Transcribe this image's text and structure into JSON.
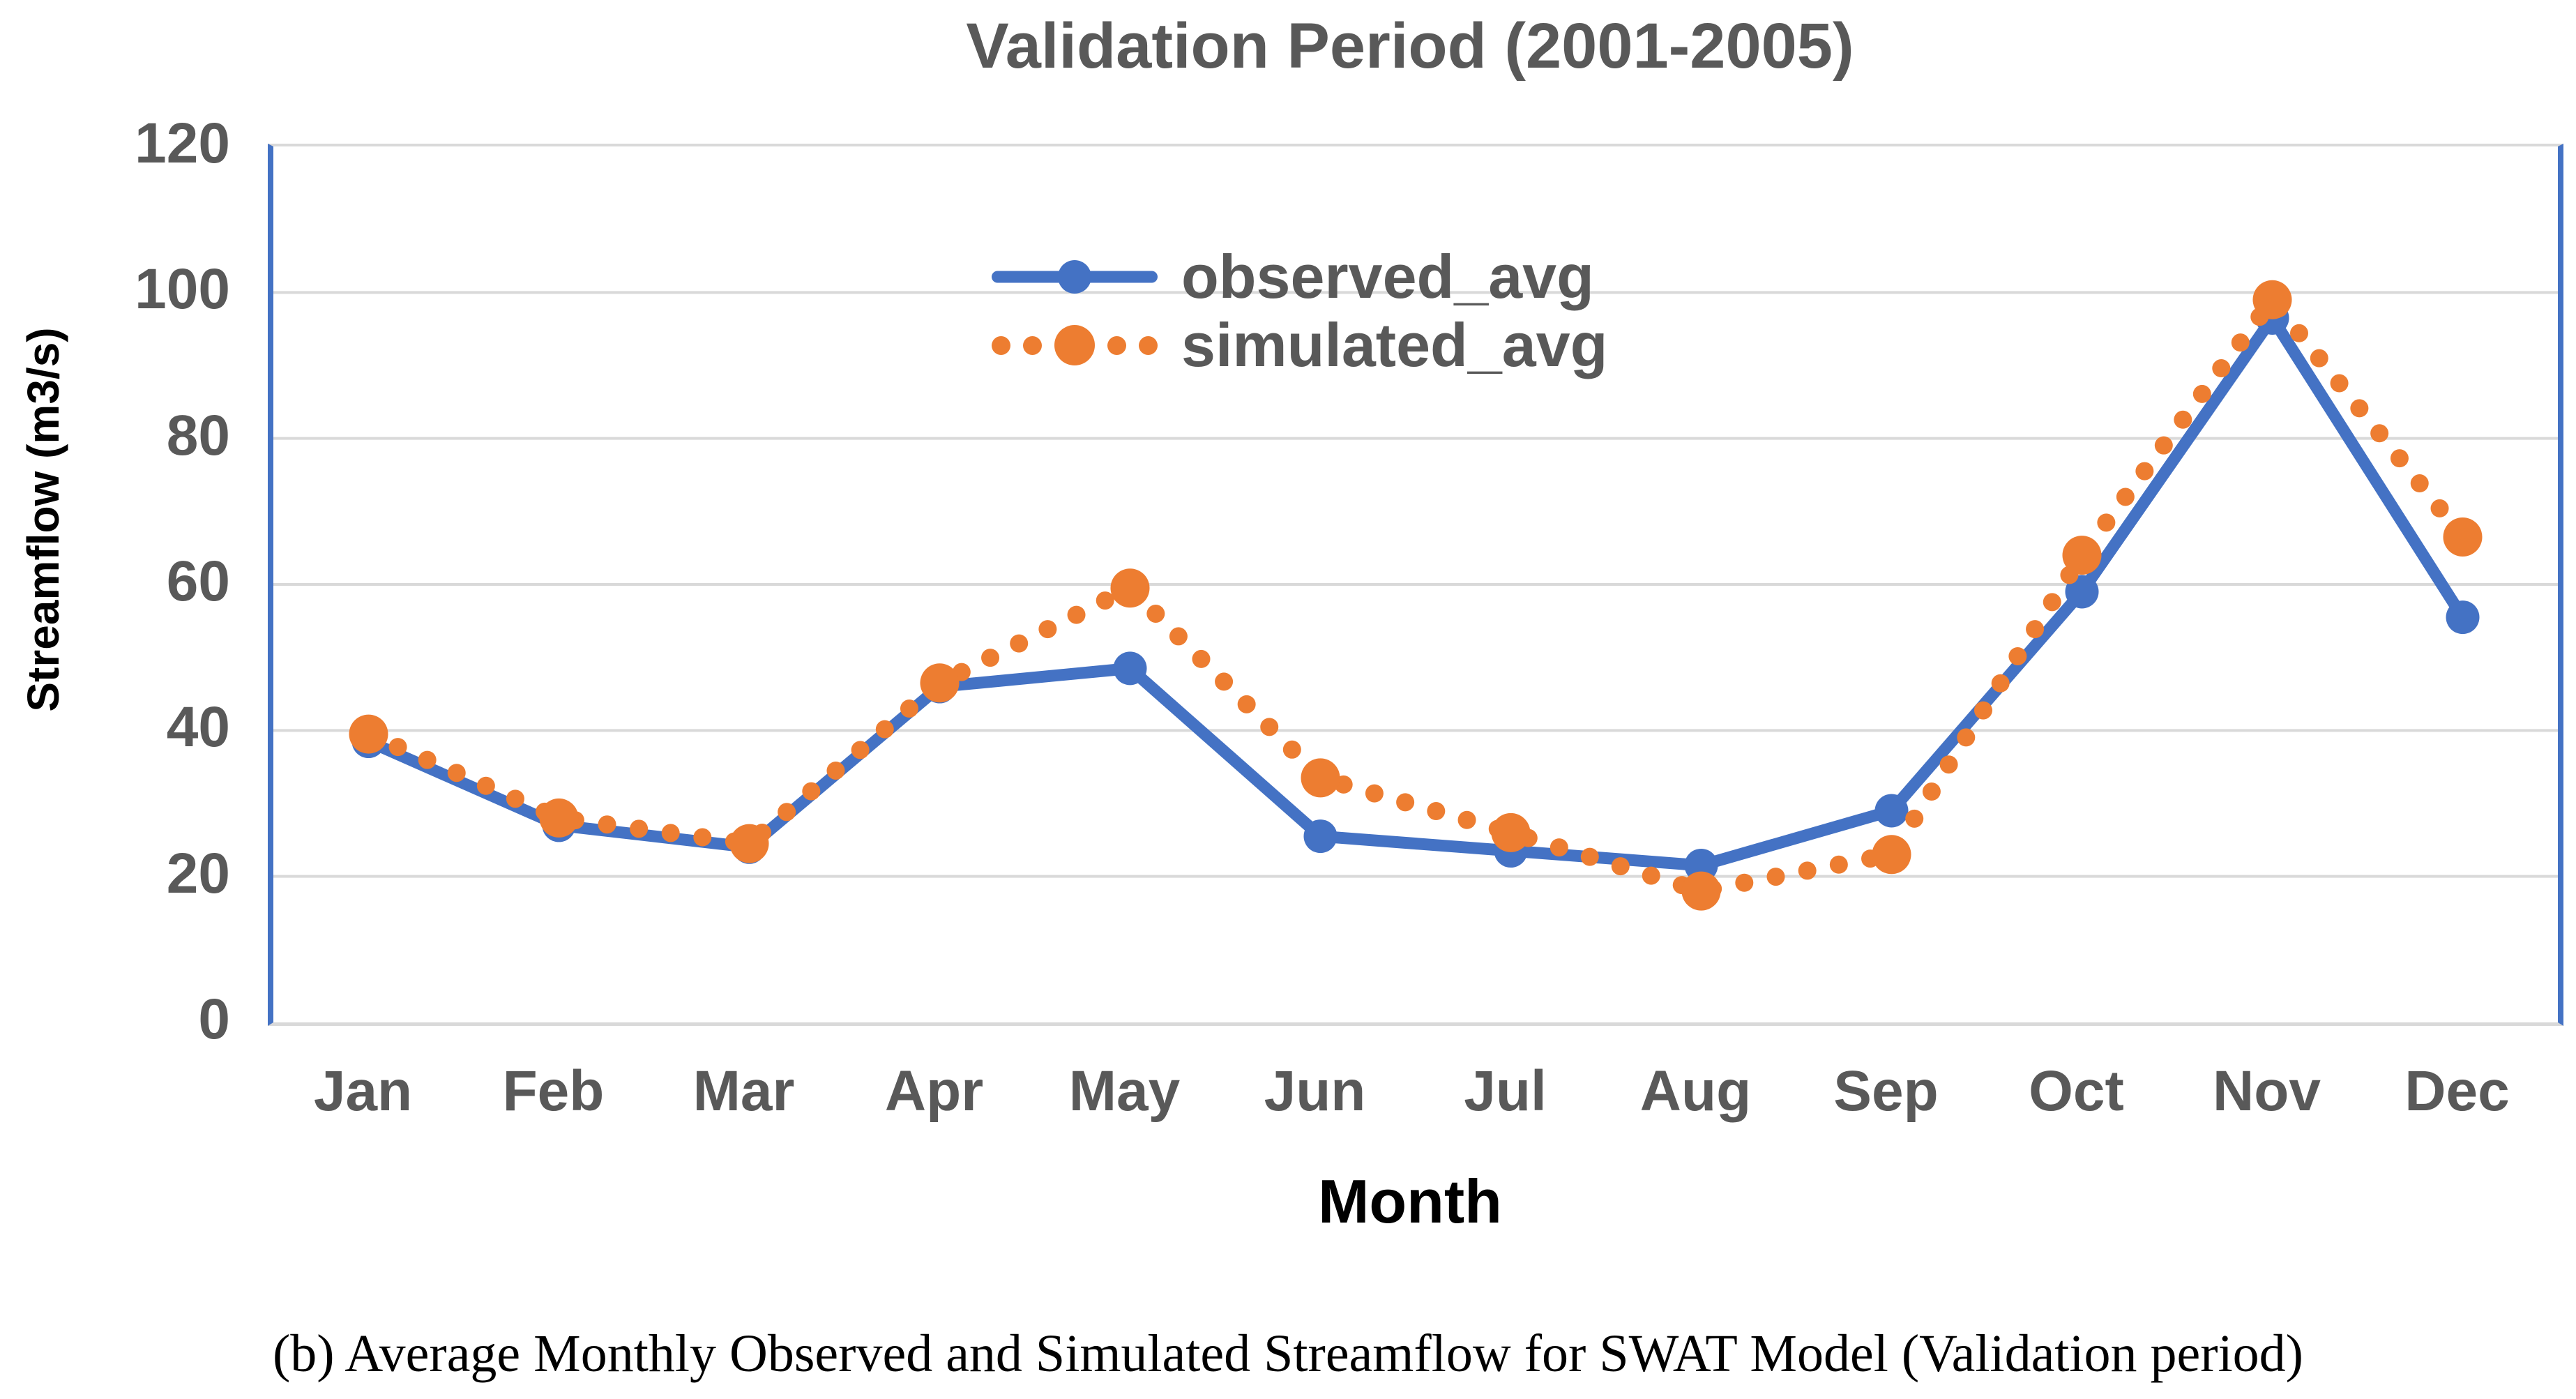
{
  "title": "Validation Period (2001-2005)",
  "caption": "(b) Average Monthly Observed and Simulated Streamflow for SWAT Model (Validation period)",
  "colors": {
    "observed": "#4472C4",
    "simulated": "#ED7D31",
    "gridline": "#D9D9D9",
    "axis_text": "#595959",
    "title_text": "#595959",
    "black_text": "#000000"
  },
  "chart_data": {
    "type": "line",
    "title": "Validation Period (2001-2005)",
    "xlabel": "Month",
    "ylabel": "Streamflow (m3/s)",
    "ylim": [
      0,
      120
    ],
    "yticks": [
      0,
      20,
      40,
      60,
      80,
      100,
      120
    ],
    "grid": true,
    "legend_position": "top-center-inside",
    "categories": [
      "Jan",
      "Feb",
      "Mar",
      "Apr",
      "May",
      "Jun",
      "Jul",
      "Aug",
      "Sep",
      "Oct",
      "Nov",
      "Dec"
    ],
    "series": [
      {
        "name": "observed_avg",
        "color": "#4472C4",
        "style": "solid",
        "marker": "circle",
        "values": [
          38.5,
          27,
          24,
          46,
          48.5,
          25.5,
          23.5,
          21.5,
          29,
          59,
          96.5,
          55.5
        ]
      },
      {
        "name": "simulated_avg",
        "color": "#ED7D31",
        "style": "dotted",
        "marker": "circle",
        "values": [
          39.5,
          28,
          24.5,
          46.5,
          59.5,
          33.5,
          26,
          18,
          23,
          64,
          99,
          66.5
        ]
      }
    ]
  }
}
